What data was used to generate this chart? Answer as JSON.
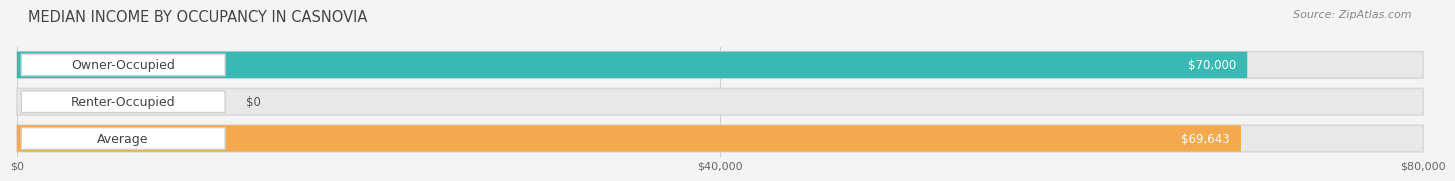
{
  "title": "MEDIAN INCOME BY OCCUPANCY IN CASNOVIA",
  "source": "Source: ZipAtlas.com",
  "categories": [
    "Owner-Occupied",
    "Renter-Occupied",
    "Average"
  ],
  "values": [
    70000,
    0,
    69643
  ],
  "bar_colors": [
    "#3ab8b3",
    "#c8a8d0",
    "#f5a94e"
  ],
  "value_labels": [
    "$70,000",
    "$0",
    "$69,643"
  ],
  "xlim": [
    0,
    80000
  ],
  "xtick_values": [
    0,
    40000,
    80000
  ],
  "xtick_labels": [
    "$0",
    "$40,000",
    "$80,000"
  ],
  "bar_height": 0.72,
  "bar_gap": 0.28,
  "background_color": "#f4f4f4",
  "bar_bg_color": "#e8e8e8",
  "bar_bg_edge_color": "#d8d8d8",
  "label_box_color": "#ffffff",
  "label_box_edge_color": "#d0d0d0",
  "grid_color": "#d0d0d0",
  "title_fontsize": 10.5,
  "source_fontsize": 8,
  "label_fontsize": 9,
  "value_fontsize": 8.5
}
